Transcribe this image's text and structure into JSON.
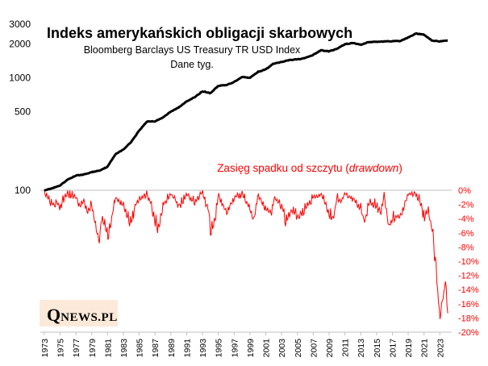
{
  "chart_data": [
    {
      "type": "line",
      "title": "Indeks amerykańskich obligacji skarbowych",
      "subtitle": "Bloomberg Barclays US Treasury TR USD Index",
      "note": "Dane tyg.",
      "yscale": "log",
      "ylim": [
        100,
        3000
      ],
      "yticks": [
        "100",
        "500",
        "1000",
        "2000",
        "3000"
      ],
      "ytick_values": [
        100,
        500,
        1000,
        2000,
        3000
      ],
      "color": "#000000",
      "x": [
        1973,
        1974,
        1975,
        1976,
        1977,
        1978,
        1979,
        1980,
        1981,
        1982,
        1983,
        1984,
        1985,
        1986,
        1987,
        1988,
        1989,
        1990,
        1991,
        1992,
        1993,
        1994,
        1995,
        1996,
        1997,
        1998,
        1999,
        2000,
        2001,
        2002,
        2003,
        2004,
        2005,
        2006,
        2007,
        2008,
        2009,
        2010,
        2011,
        2012,
        2013,
        2014,
        2015,
        2016,
        2017,
        2018,
        2019,
        2020,
        2021,
        2022,
        2023,
        2024
      ],
      "values": [
        100,
        104,
        110,
        125,
        135,
        138,
        145,
        150,
        162,
        210,
        230,
        270,
        340,
        410,
        410,
        445,
        500,
        545,
        620,
        670,
        760,
        730,
        850,
        860,
        920,
        1020,
        1000,
        1130,
        1190,
        1340,
        1380,
        1440,
        1460,
        1500,
        1600,
        1760,
        1720,
        1810,
        1990,
        2040,
        1970,
        2080,
        2090,
        2110,
        2120,
        2120,
        2290,
        2480,
        2420,
        2150,
        2110,
        2140
      ]
    },
    {
      "type": "area",
      "title": "Zasięg spadku od szczytu (drawdown)",
      "title_main": "Zasięg spadku od szczytu (",
      "title_italic": "drawdown",
      "title_close": ")",
      "ylim": [
        -20,
        0
      ],
      "yticks": [
        "0%",
        "-2%",
        "-4%",
        "-6%",
        "-8%",
        "-10%",
        "-12%",
        "-14%",
        "-16%",
        "-18%",
        "-20%"
      ],
      "ytick_values": [
        0,
        -2,
        -4,
        -6,
        -8,
        -10,
        -12,
        -14,
        -16,
        -18,
        -20
      ],
      "color": "#ff0000",
      "x": [
        1973,
        1973.5,
        1974,
        1974.5,
        1975,
        1975.5,
        1976,
        1977,
        1977.5,
        1978,
        1978.5,
        1979,
        1979.5,
        1980,
        1980.2,
        1980.6,
        1981,
        1981.5,
        1982,
        1983,
        1983.5,
        1984,
        1984.5,
        1985,
        1986,
        1986.5,
        1987,
        1987.4,
        1987.8,
        1988,
        1989,
        1990,
        1990.5,
        1991,
        1992,
        1993,
        1993.8,
        1994,
        1994.5,
        1995,
        1996,
        1996.5,
        1997,
        1998,
        1999,
        1999.5,
        2000,
        2001,
        2001.8,
        2002,
        2003,
        2003.5,
        2004,
        2004.5,
        2005,
        2006,
        2007,
        2008,
        2009,
        2009.5,
        2010,
        2010.5,
        2011,
        2012,
        2013,
        2013.5,
        2014,
        2015,
        2015.5,
        2016,
        2016.5,
        2017,
        2018,
        2018.5,
        2019,
        2020,
        2020.5,
        2021,
        2021.5,
        2022,
        2022.3,
        2022.6,
        2022.8,
        2023,
        2023.3,
        2023.6,
        2023.8,
        2024
      ],
      "values": [
        0,
        -1,
        -2,
        -1.5,
        -2.2,
        -1,
        -0.5,
        -0.8,
        -2,
        -1.5,
        -3,
        -2,
        -5,
        -7.5,
        -3.5,
        -5,
        -6,
        -4,
        -1,
        -2,
        -3.5,
        -4.5,
        -2,
        -1,
        -0.5,
        -2,
        -4,
        -5.5,
        -3,
        -2,
        -0.5,
        -2,
        -1.5,
        -0.5,
        -1.5,
        -0.3,
        -3,
        -6,
        -4.5,
        -0.5,
        -3,
        -2,
        -1,
        -0.5,
        -2.5,
        -4,
        -0.5,
        -2.5,
        -3,
        -1,
        -2,
        -4,
        -3,
        -2.5,
        -3.5,
        -2.5,
        -1,
        -0.5,
        -3,
        -4,
        -1,
        -1.5,
        -0.5,
        -1,
        -2.5,
        -4.5,
        -1.5,
        -2,
        -3,
        -0.5,
        -5,
        -4,
        -3.5,
        -2,
        -0.5,
        -0.3,
        -1.5,
        -3.5,
        -3,
        -5,
        -8,
        -12,
        -15,
        -18,
        -16,
        -13,
        -14,
        -17
      ]
    }
  ],
  "xaxis": {
    "tick_labels": [
      "1973",
      "1975",
      "1977",
      "1979",
      "1981",
      "1983",
      "1985",
      "1987",
      "1989",
      "1991",
      "1993",
      "1995",
      "1997",
      "1999",
      "2001",
      "2003",
      "2005",
      "2007",
      "2009",
      "2011",
      "2013",
      "2015",
      "2017",
      "2019",
      "2021",
      "2023"
    ],
    "tick_values": [
      1973,
      1975,
      1977,
      1979,
      1981,
      1983,
      1985,
      1987,
      1989,
      1991,
      1993,
      1995,
      1997,
      1999,
      2001,
      2003,
      2005,
      2007,
      2009,
      2011,
      2013,
      2015,
      2017,
      2019,
      2021,
      2023
    ],
    "range": [
      1972.5,
      2024.5
    ]
  },
  "logo": {
    "q": "Q",
    "rest": "NEWS.PL"
  },
  "colors": {
    "line": "#000000",
    "drawdown": "#ff0000",
    "logo_bg": "#fde9d9",
    "grid": "#d9d9d9"
  }
}
